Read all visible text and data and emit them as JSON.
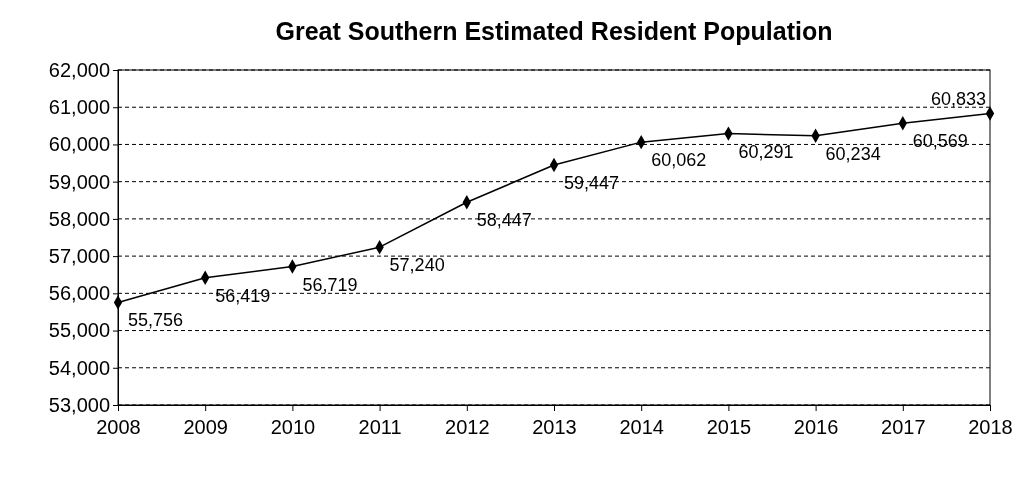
{
  "chart_data": {
    "type": "line",
    "title": "Great Southern Estimated Resident Population",
    "x": [
      2008,
      2009,
      2010,
      2011,
      2012,
      2013,
      2014,
      2015,
      2016,
      2017,
      2018
    ],
    "series": [
      {
        "color": "#000000",
        "values": [
          55756,
          56419,
          56719,
          57240,
          58447,
          59447,
          60062,
          60291,
          60234,
          60569,
          60833
        ],
        "value_labels": [
          "55,756",
          "56,419",
          "56,719",
          "57,240",
          "58,447",
          "59,447",
          "60,062",
          "60,291",
          "60,234",
          "60,569",
          "60,833"
        ]
      }
    ],
    "xlim": [
      2008,
      2018
    ],
    "xticks": [
      2008,
      2009,
      2010,
      2011,
      2012,
      2013,
      2014,
      2015,
      2016,
      2017,
      2018
    ],
    "ylim": [
      53000,
      62000
    ],
    "yticks": [
      {
        "value": 53000,
        "label": "53,000"
      },
      {
        "value": 54000,
        "label": "54,000"
      },
      {
        "value": 55000,
        "label": "55,000"
      },
      {
        "value": 56000,
        "label": "56,000"
      },
      {
        "value": 57000,
        "label": "57,000"
      },
      {
        "value": 58000,
        "label": "58,000"
      },
      {
        "value": 59000,
        "label": "59,000"
      },
      {
        "value": 60000,
        "label": "60,000"
      },
      {
        "value": 61000,
        "label": "61,000"
      },
      {
        "value": 62000,
        "label": "62,000"
      }
    ],
    "grid": "y",
    "marker": "diamond",
    "line_style": "solid"
  }
}
